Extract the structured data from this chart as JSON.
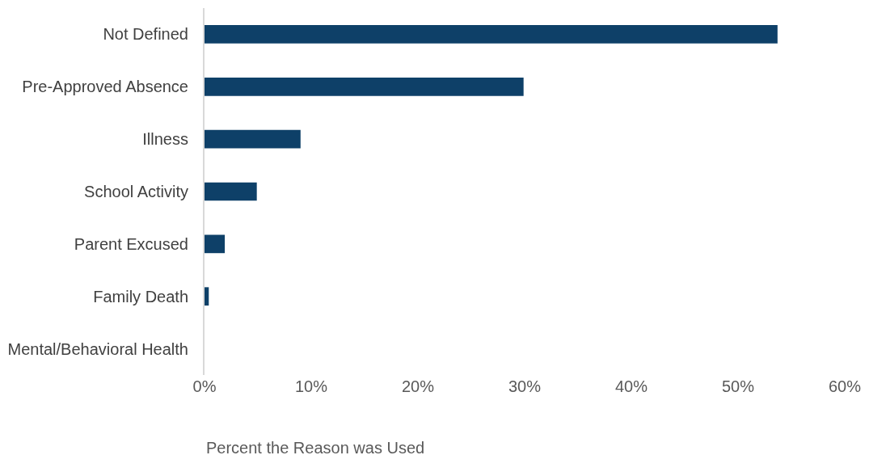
{
  "chart_data": {
    "type": "bar",
    "orientation": "horizontal",
    "xlabel": "Percent the Reason was Used",
    "categories": [
      "Not Defined",
      "Pre-Approved Absence",
      "Illness",
      "School Activity",
      "Parent Excused",
      "Family Death",
      "Mental/Behavioral Health"
    ],
    "values": [
      53.7,
      29.9,
      9.0,
      4.9,
      1.9,
      0.4,
      0
    ],
    "color": "#0e4068",
    "xlim": [
      0,
      60
    ],
    "xticks": [
      {
        "value": 0,
        "label": "0%"
      },
      {
        "value": 10,
        "label": "10%"
      },
      {
        "value": 20,
        "label": "20%"
      },
      {
        "value": 30,
        "label": "30%"
      },
      {
        "value": 40,
        "label": "40%"
      },
      {
        "value": 50,
        "label": "50%"
      },
      {
        "value": 60,
        "label": "60%"
      }
    ]
  }
}
